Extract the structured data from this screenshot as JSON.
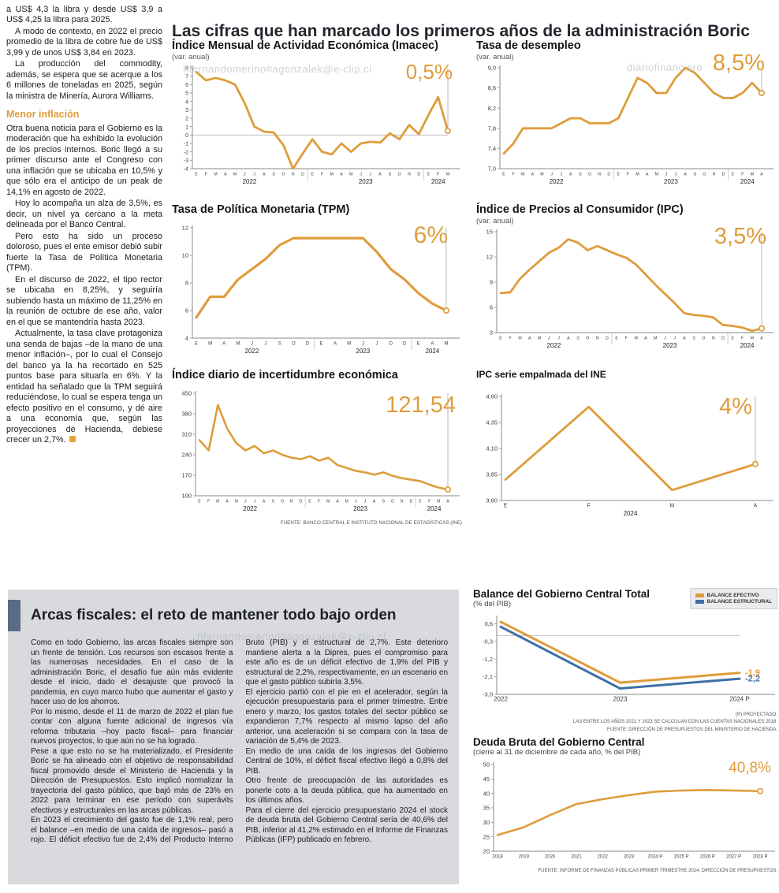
{
  "page": {
    "accent_orange": "#DF9C3B",
    "accent_blue": "#3E6FA5",
    "watermark1": "hfernandomerino#agonzalek@e-clip.cl",
    "watermark2": "diariofinanciero",
    "watermark3": "hfernandomerino#agonzalek@e-clip.cl"
  },
  "left_article": {
    "paragraphs": [
      "a US$ 4,3 la libra y desde US$ 3,9 a US$ 4,25 la libra para 2025.",
      "A modo de contexto, en 2022 el precio promedio de la libra de cobre fue de US$ 3,99 y de unos US$ 3,84 en 2023.",
      "La producción del commodity, además, se espera que se acerque a los 6 millones de toneladas en 2025, según la ministra de Minería, Aurora Williams."
    ],
    "subheading": "Menor inflación",
    "paragraphs2": [
      "Otra buena noticia para el Gobierno es la moderación que ha exhibido la evolución de los precios internos. Boric llegó a su primer discurso ante el Congreso con una inflación que se ubicaba en 10,5% y que sólo era el anticipo de un peak de 14,1% en agosto de 2022.",
      "Hoy lo acompaña un alza de 3,5%, es decir, un nivel ya cercano a la meta delineada por el Banco Central.",
      "Pero esto ha sido un proceso doloroso, pues el ente emisor debió subir fuerte la Tasa de Política Monetaria (TPM).",
      "En el discurso de 2022, el tipo rector se ubicaba en 8,25%, y seguiría subiendo hasta un máximo de 11,25% en la reunión de octubre de ese año, valor en el que se mantendría hasta 2023.",
      "Actualmente, la tasa clave protagoniza una senda de bajas –de la mano de una menor inflación–, por lo cual el Consejo del banco ya la ha recortado en 525 puntos base para situarla en 6%. Y la entidad ha señalado que la TPM seguirá reduciéndose, lo cual se espera tenga un efecto positivo en el consumo, y dé aire a una economía que, según las proyecciones de Hacienda, debiese crecer un 2,7%."
    ]
  },
  "main": {
    "title": "Las cifras que han marcado los primeros años de la administración Boric"
  },
  "fiscal": {
    "title": "Arcas fiscales: el reto de mantener todo bajo orden",
    "paragraphs": [
      "Como en todo Gobierno, las arcas fiscales siempre son un frente de tensión. Los recursos son escasos frente a las numerosas necesidades. En el caso de la administración Boric, el desafío fue aún más evidente desde el inicio, dado el desajuste que provocó la pandemia, en cuyo marco hubo que aumentar el gasto y hacer uso de los ahorros.",
      "Por lo mismo, desde el 11 de marzo de 2022 el plan fue contar con alguna fuente adicional de ingresos vía reforma tributaria –hoy pacto fiscal– para financiar nuevos proyectos, lo que aún no se ha logrado.",
      "Pese a que esto no se ha materializado, el Presidente Boric se ha alineado con el objetivo de responsabilidad fiscal promovido desde el Ministerio de Hacienda y la Dirección de Presupuestos. Esto implicó normalizar la trayectoria del gasto público, que bajó más de 23% en 2022 para terminar en ese período con superávits efectivos y estructurales en las arcas públicas.",
      "En 2023 el crecimiento del gasto fue de 1,1% real, pero el balance –en medio de una caída de ingresos– pasó a rojo. El déficit efectivo fue de 2,4% del Producto Interno Bruto (PIB) y el estructural de 2,7%. Este deterioro mantiene alerta a la Dipres, pues el compromiso para este año es de un déficit efectivo de 1,9% del PIB y estructural de 2,2%, respectivamente, en un escenario en que el gasto público subiría 3,5%.",
      "El ejercicio partió con el pie en el acelerador, según la ejecución presupuestaria para el primer trimestre. Entre enero y marzo, los gastos totales del sector público se expandieron 7,7% respecto al mismo lapso del año anterior, una aceleración si se compara con la tasa de variación de 5,4% de 2023.",
      "En medio de una caída de los ingresos del Gobierno Central de 10%, el déficit fiscal efectivo llegó a 0,8% del PIB.",
      "Otro frente de preocupación de las autoridades es ponerle coto a la deuda pública, que ha aumentado en los últimos años.",
      "Para el cierre del ejercicio presupuestario 2024 el stock de deuda bruta del Gobierno Central sería de 40,6% del PIB, inferior al 41,2% estimado en el Informe de Finanzas Públicas (IFP) publicado en febrero."
    ]
  },
  "chart_data": [
    {
      "type": "line",
      "title": "Índice Mensual de Actividad Económica (Imacec)",
      "subtitle": "(var. anual)",
      "value_label": "0,5%",
      "ymin": -4,
      "ymax": 8,
      "yticks": [
        "8",
        "7",
        "6",
        "5",
        "4",
        "3",
        "2",
        "1",
        "0",
        "-1",
        "-2",
        "-3",
        "-4"
      ],
      "x_labels": [
        "E",
        "F",
        "M",
        "A",
        "M",
        "J",
        "J",
        "A",
        "S",
        "O",
        "N",
        "D",
        "E",
        "F",
        "M",
        "A",
        "M",
        "J",
        "J",
        "A",
        "S",
        "O",
        "N",
        "D",
        "E",
        "F",
        "M"
      ],
      "years": [
        {
          "label": "2022",
          "span": 12
        },
        {
          "label": "2023",
          "span": 12
        },
        {
          "label": "2024",
          "span": 3
        }
      ],
      "guide_last": true,
      "ml": 26,
      "mr": 18,
      "mt": 6,
      "mb": 24,
      "ytf": 7,
      "xtf": 5.2,
      "series": [
        {
          "name": "Imacec",
          "color": "#DF9C3B",
          "width": 2.8,
          "marker_last": true,
          "values": [
            7.5,
            6.5,
            6.8,
            6.5,
            6.0,
            3.8,
            1.0,
            0.4,
            0.3,
            -1.2,
            -4.0,
            -2.2,
            -0.5,
            -2.0,
            -2.3,
            -1.0,
            -2.0,
            -1.0,
            -0.8,
            -0.9,
            0.2,
            -0.5,
            1.2,
            0.1,
            2.4,
            4.5,
            0.5
          ]
        }
      ]
    },
    {
      "type": "line",
      "title": "Tasa de desempleo",
      "subtitle": "(var. anual)",
      "value_label": "8,5%",
      "ymin": 7.0,
      "ymax": 9.0,
      "yticks": [
        "9,0",
        "8,6",
        "8,2",
        "7,8",
        "7,4",
        "7,0"
      ],
      "x_labels": [
        "E",
        "F",
        "M",
        "A",
        "M",
        "J",
        "J",
        "A",
        "S",
        "O",
        "N",
        "D",
        "E",
        "F",
        "M",
        "A",
        "M",
        "J",
        "J",
        "A",
        "S",
        "O",
        "N",
        "D",
        "E",
        "F",
        "M",
        "A"
      ],
      "years": [
        {
          "label": "2022",
          "span": 12
        },
        {
          "label": "2023",
          "span": 12
        },
        {
          "label": "2024",
          "span": 4
        }
      ],
      "guide_last": true,
      "ml": 30,
      "mr": 18,
      "mt": 6,
      "mb": 24,
      "ytf": 7.5,
      "xtf": 5.2,
      "series": [
        {
          "name": "Desempleo",
          "color": "#DF9C3B",
          "width": 2.8,
          "marker_last": true,
          "values": [
            7.3,
            7.5,
            7.8,
            7.8,
            7.8,
            7.8,
            7.9,
            8.0,
            8.0,
            7.9,
            7.9,
            7.9,
            8.0,
            8.4,
            8.8,
            8.7,
            8.5,
            8.5,
            8.8,
            9.0,
            8.9,
            8.7,
            8.5,
            8.4,
            8.4,
            8.5,
            8.7,
            8.5
          ]
        }
      ]
    },
    {
      "type": "line",
      "title": "Tasa de Política Monetaria (TPM)",
      "value_label": "6%",
      "ymin": 4,
      "ymax": 12,
      "yticks": [
        "12",
        "10",
        "8",
        "6",
        "4"
      ],
      "x_labels": [
        "E",
        "M",
        "A",
        "M",
        "J",
        "J",
        "S",
        "O",
        "D",
        "E",
        "A",
        "M",
        "J",
        "J",
        "O",
        "D",
        "E",
        "A",
        "M"
      ],
      "years": [
        {
          "label": "2022",
          "span": 9
        },
        {
          "label": "2023",
          "span": 7
        },
        {
          "label": "2024",
          "span": 3
        }
      ],
      "guide_last": true,
      "ml": 26,
      "mr": 20,
      "mt": 6,
      "mb": 24,
      "ytf": 7.5,
      "xtf": 6,
      "series": [
        {
          "name": "TPM",
          "color": "#DF9C3B",
          "width": 3.2,
          "marker_last": true,
          "values": [
            5.5,
            7.0,
            7.0,
            8.25,
            9.0,
            9.75,
            10.75,
            11.25,
            11.25,
            11.25,
            11.25,
            11.25,
            11.25,
            10.25,
            9.0,
            8.25,
            7.25,
            6.5,
            6.0
          ]
        }
      ]
    },
    {
      "type": "line",
      "title": "Índice de Precios al Consumidor (IPC)",
      "subtitle": "(var. anual)",
      "value_label": "3,5%",
      "ymin": 3,
      "ymax": 15,
      "yticks": [
        "15",
        "12",
        "9",
        "6",
        "3"
      ],
      "x_labels": [
        "E",
        "F",
        "M",
        "A",
        "M",
        "J",
        "J",
        "A",
        "S",
        "O",
        "N",
        "D",
        "E",
        "F",
        "M",
        "A",
        "M",
        "J",
        "J",
        "A",
        "S",
        "O",
        "N",
        "D",
        "E",
        "F",
        "M",
        "A"
      ],
      "years": [
        {
          "label": "2022",
          "span": 12
        },
        {
          "label": "2023",
          "span": 12
        },
        {
          "label": "2024",
          "span": 4
        }
      ],
      "guide_last": true,
      "ml": 26,
      "mr": 18,
      "mt": 6,
      "mb": 24,
      "ytf": 7.5,
      "xtf": 5.2,
      "series": [
        {
          "name": "IPC",
          "color": "#DF9C3B",
          "width": 2.8,
          "marker_last": true,
          "values": [
            7.7,
            7.8,
            9.4,
            10.5,
            11.5,
            12.5,
            13.1,
            14.1,
            13.7,
            12.8,
            13.3,
            12.8,
            12.3,
            11.9,
            11.1,
            9.9,
            8.7,
            7.6,
            6.5,
            5.3,
            5.1,
            5.0,
            4.8,
            3.9,
            3.8,
            3.6,
            3.2,
            3.5
          ]
        }
      ]
    },
    {
      "type": "line",
      "title": "Índice diario de incertidumbre económica",
      "value_label": "121,54",
      "ymin": 100,
      "ymax": 450,
      "yticks": [
        "450",
        "380",
        "310",
        "240",
        "170",
        "100"
      ],
      "x_labels": [
        "E",
        "F",
        "M",
        "A",
        "M",
        "J",
        "J",
        "A",
        "S",
        "O",
        "N",
        "D",
        "E",
        "F",
        "M",
        "A",
        "M",
        "J",
        "J",
        "A",
        "S",
        "O",
        "N",
        "D",
        "E",
        "F",
        "M",
        "A"
      ],
      "years": [
        {
          "label": "2022",
          "span": 12
        },
        {
          "label": "2023",
          "span": 12
        },
        {
          "label": "2024",
          "span": 4
        }
      ],
      "guide_last": true,
      "ml": 30,
      "mr": 18,
      "mt": 6,
      "mb": 24,
      "ytf": 7.5,
      "xtf": 5.2,
      "source": "FUENTE: BANCO CENTRAL E INSTITUTO NACIONAL DE ESTADÍSTICAS (INE)",
      "series": [
        {
          "name": "Incertidumbre",
          "color": "#DF9C3B",
          "width": 2.6,
          "marker_last": true,
          "values": [
            290,
            255,
            410,
            330,
            280,
            255,
            270,
            245,
            255,
            240,
            230,
            225,
            235,
            220,
            230,
            205,
            195,
            185,
            180,
            172,
            180,
            168,
            160,
            155,
            150,
            138,
            128,
            121.54
          ]
        }
      ]
    },
    {
      "type": "line",
      "title": "IPC serie empalmada del INE",
      "value_label": "4%",
      "ymin": 3.6,
      "ymax": 4.6,
      "yticks": [
        "4,60",
        "4,35",
        "4,10",
        "3,85",
        "3,60"
      ],
      "x_labels": [
        "E",
        "F",
        "M",
        "A"
      ],
      "years": [
        {
          "label": "2024",
          "span": 4
        }
      ],
      "guide_last": true,
      "ml": 32,
      "mr": 26,
      "mt": 6,
      "mb": 24,
      "ytf": 7.5,
      "xtf": 7,
      "series": [
        {
          "name": "IPC empalmada",
          "color": "#DF9C3B",
          "width": 2.8,
          "marker_last": true,
          "values": [
            3.8,
            4.5,
            3.7,
            3.95
          ]
        }
      ]
    },
    {
      "type": "line",
      "title": "Balance del Gobierno Central Total",
      "subtitle": "(% del PIB)",
      "ymin": -3.0,
      "ymax": 0.9,
      "yticks": [
        "0,6",
        "-0,3",
        "-1,2",
        "-2,1",
        "-3,0"
      ],
      "x_labels": [
        "2022",
        "2023",
        "2024 P"
      ],
      "ml": 30,
      "mr": 48,
      "mt": 6,
      "mb": 15,
      "ytf": 7.5,
      "xtf": 8,
      "legend_position": "top-right",
      "notes": [
        "(P) PROYECTADO.",
        "LAS ENTRE LOS AÑOS 2021 Y 2023 SE CALCULAN  CON LAS CUENTAS NACIONALES 2018.",
        "FUENTE: DIRECCIÓN DE PRESUPUESTOS DEL MINISTERIO DE HACIENDA."
      ],
      "series": [
        {
          "name": "BALANCE EFECTIVO",
          "color": "#DF9C3B",
          "width": 3,
          "end_label": "-1,9",
          "values": [
            0.7,
            -2.4,
            -1.9
          ]
        },
        {
          "name": "BALANCE ESTRUCTURAL",
          "color": "#3E6FA5",
          "width": 3,
          "end_label": "-2,2",
          "values": [
            0.45,
            -2.7,
            -2.2
          ]
        }
      ]
    },
    {
      "type": "line",
      "title": "Deuda Bruta del Gobierno Central",
      "subtitle": "(cierre al 31 de diciembre de cada año, % del PIB)",
      "value_label": "40,8%",
      "ymin": 20,
      "ymax": 50,
      "yticks": [
        "50",
        "45",
        "40",
        "35",
        "30",
        "25",
        "20"
      ],
      "x_labels": [
        "2018",
        "2019",
        "2020",
        "2021",
        "2022",
        "2023",
        "2024 P",
        "2025 P",
        "2026 P",
        "2027 P",
        "2028 P"
      ],
      "ml": 26,
      "mr": 22,
      "mt": 8,
      "mb": 14,
      "ytf": 7.5,
      "xtf": 6,
      "source": "FUENTE: INFORME DE FINANZAS PÚBLICAS PRIMER TRIMESTRE 2024, DIRECCIÓN DE PRESUPUESTOS.",
      "series": [
        {
          "name": "Deuda bruta",
          "color": "#DF9C3B",
          "width": 2.6,
          "marker_last": true,
          "values": [
            25.6,
            28.3,
            32.5,
            36.3,
            38.0,
            39.4,
            40.6,
            41.0,
            41.2,
            41.0,
            40.8
          ]
        }
      ]
    }
  ]
}
